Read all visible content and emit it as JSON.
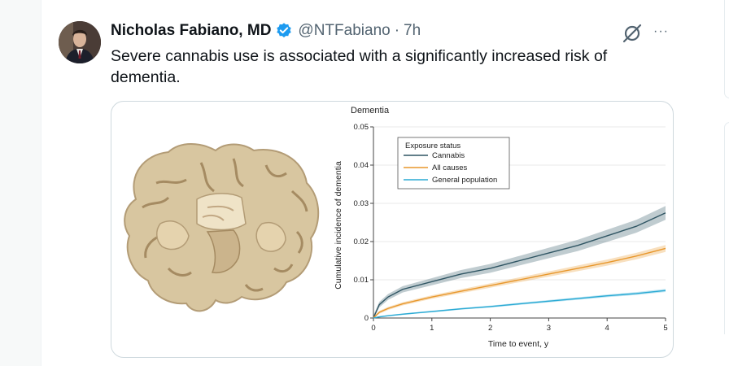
{
  "tweet": {
    "author_name": "Nicholas Fabiano, MD",
    "handle": "@NTFabiano",
    "separator": "·",
    "time": "7h",
    "text": "Severe cannabis use is associated with a significantly increased risk of dementia.",
    "icons": {
      "verified": "verified-badge-icon",
      "grok": "grok-icon",
      "more": "more-options-icon"
    },
    "more_label": "···"
  },
  "colors": {
    "verified": "#1d9bf0",
    "cannabis": "#2f5563",
    "all_causes": "#e8972c",
    "general_population": "#2aaad4"
  },
  "chart_data": {
    "type": "line",
    "title": "Dementia",
    "xlabel": "Time to event, y",
    "ylabel": "Cumulative incidence of dementia",
    "xlim": [
      0,
      5
    ],
    "ylim": [
      0,
      0.05
    ],
    "xticks": [
      "0",
      "1",
      "2",
      "3",
      "4",
      "5"
    ],
    "yticks": [
      "0",
      "0.01",
      "0.02",
      "0.03",
      "0.04",
      "0.05"
    ],
    "legend_title": "Exposure status",
    "legend_position": "top-right",
    "grid": true,
    "series": [
      {
        "name": "Cannabis",
        "x": [
          0,
          0.1,
          0.25,
          0.5,
          1,
          1.5,
          2,
          2.5,
          3,
          3.5,
          4,
          4.5,
          5
        ],
        "values": [
          0,
          0.0035,
          0.0055,
          0.0075,
          0.0095,
          0.0115,
          0.013,
          0.015,
          0.017,
          0.019,
          0.0215,
          0.024,
          0.0275
        ]
      },
      {
        "name": "All causes",
        "x": [
          0,
          0.1,
          0.25,
          0.5,
          1,
          1.5,
          2,
          2.5,
          3,
          3.5,
          4,
          4.5,
          5
        ],
        "values": [
          0,
          0.0015,
          0.0025,
          0.0037,
          0.0055,
          0.007,
          0.0085,
          0.01,
          0.0115,
          0.013,
          0.0145,
          0.0162,
          0.0182
        ]
      },
      {
        "name": "General population",
        "x": [
          0,
          0.1,
          0.25,
          0.5,
          1,
          1.5,
          2,
          2.5,
          3,
          3.5,
          4,
          4.5,
          5
        ],
        "values": [
          0,
          0.0003,
          0.0006,
          0.001,
          0.0017,
          0.0024,
          0.003,
          0.0037,
          0.0044,
          0.0051,
          0.0058,
          0.0064,
          0.0072
        ]
      }
    ]
  }
}
